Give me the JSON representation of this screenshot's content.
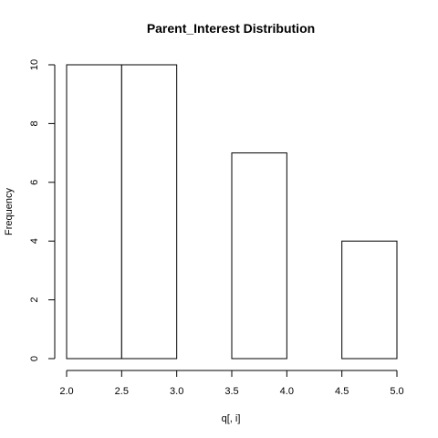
{
  "chart_data": {
    "type": "bar",
    "title": "Parent_Interest Distribution",
    "xlabel": "q[, i]",
    "ylabel": "Frequency",
    "bins": [
      {
        "from": 2.0,
        "to": 2.5,
        "count": 10
      },
      {
        "from": 2.5,
        "to": 3.0,
        "count": 10
      },
      {
        "from": 3.0,
        "to": 3.5,
        "count": 0
      },
      {
        "from": 3.5,
        "to": 4.0,
        "count": 7
      },
      {
        "from": 4.0,
        "to": 4.5,
        "count": 0
      },
      {
        "from": 4.5,
        "to": 5.0,
        "count": 4
      }
    ],
    "xlim": [
      2.0,
      5.0
    ],
    "ylim": [
      0,
      10
    ],
    "x_ticks": [
      "2.0",
      "2.5",
      "3.0",
      "3.5",
      "4.0",
      "4.5",
      "5.0"
    ],
    "y_ticks": [
      "0",
      "2",
      "4",
      "6",
      "8",
      "10"
    ],
    "grid": false,
    "legend": "none"
  }
}
